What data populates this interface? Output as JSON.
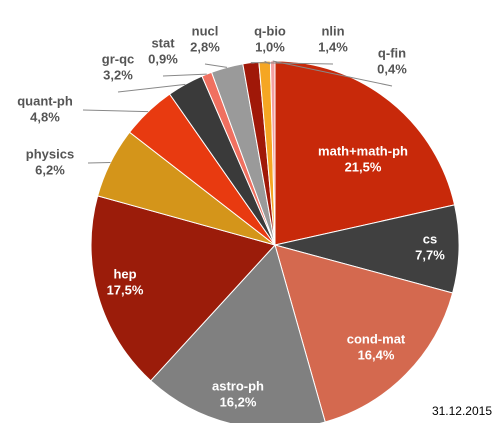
{
  "chart_data": {
    "type": "pie",
    "categories": [
      "math+math-ph",
      "cs",
      "cond-mat",
      "astro-ph",
      "hep",
      "physics",
      "quant-ph",
      "gr-qc",
      "stat",
      "nucl",
      "nlin",
      "q-bio",
      "q-fin"
    ],
    "values": [
      21.5,
      7.7,
      16.4,
      16.2,
      17.5,
      6.2,
      4.8,
      3.2,
      0.9,
      2.8,
      1.4,
      1.0,
      0.4
    ],
    "value_labels": [
      "21,5%",
      "7,7%",
      "16,4%",
      "16,2%",
      "17,5%",
      "6,2%",
      "4,8%",
      "3,2%",
      "0,9%",
      "2,8%",
      "1,4%",
      "1,0%",
      "0,4%"
    ],
    "colors": [
      "#c8290a",
      "#404040",
      "#d4694f",
      "#808080",
      "#9b1c0a",
      "#d4951a",
      "#e83a10",
      "#3a3a3a",
      "#f07060",
      "#9a9a9a",
      "#a01808",
      "#f5a623",
      "#f4a0a0"
    ],
    "annotation": "31.12.2015"
  }
}
